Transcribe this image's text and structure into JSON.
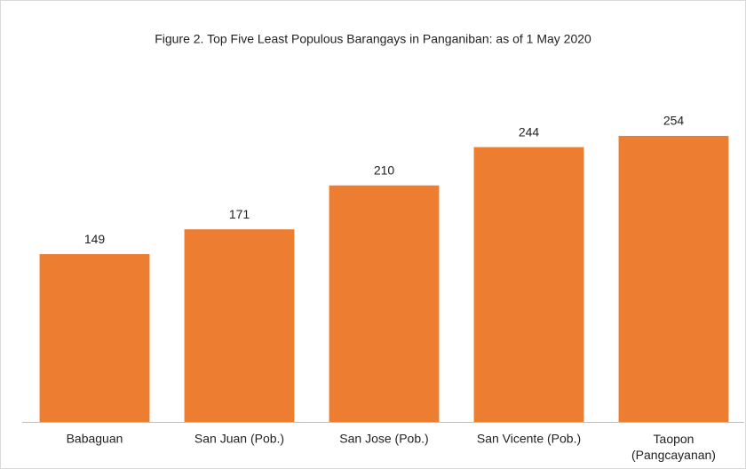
{
  "chart_data": {
    "type": "bar",
    "title": "Figure 2. Top Five Least Populous Barangays in Panganiban:  as of 1 May 2020",
    "categories": [
      "Babaguan",
      "San Juan (Pob.)",
      "San Jose (Pob.)",
      "San Vicente (Pob.)",
      "Taopon (Pangcayanan)"
    ],
    "values": [
      149,
      171,
      210,
      244,
      254
    ],
    "color": "#ed7d31",
    "ylim": [
      0,
      280
    ]
  }
}
